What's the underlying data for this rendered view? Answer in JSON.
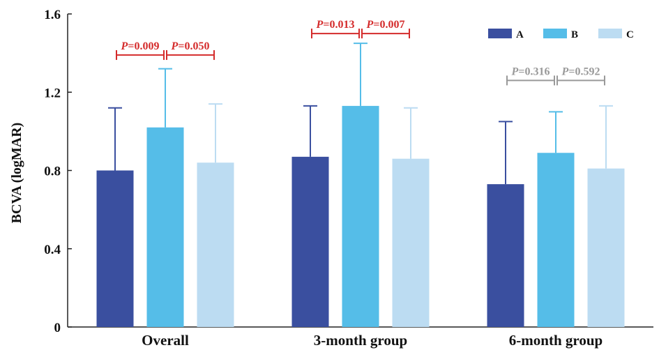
{
  "chart_data": {
    "type": "bar",
    "title": "",
    "xlabel": "",
    "ylabel": "BCVA (logMAR)",
    "ylim": [
      0,
      1.6
    ],
    "yticks": [
      "0",
      "0.4",
      "0.8",
      "1.2",
      "1.6"
    ],
    "categories": [
      "Overall",
      "3-month group",
      "6-month group"
    ],
    "legend_position": "top-right",
    "series": [
      {
        "name": "A",
        "color": "#3a4f9f",
        "values": [
          0.8,
          0.87,
          0.73
        ],
        "errors": [
          0.32,
          0.26,
          0.32
        ]
      },
      {
        "name": "B",
        "color": "#55bde8",
        "values": [
          1.02,
          1.13,
          0.89
        ],
        "errors": [
          0.3,
          0.32,
          0.21
        ]
      },
      {
        "name": "C",
        "color": "#bcdcf2",
        "values": [
          0.84,
          0.86,
          0.81
        ],
        "errors": [
          0.3,
          0.26,
          0.32
        ]
      }
    ],
    "annotations": [
      {
        "category": 0,
        "from": 0,
        "to": 1,
        "p_letter": "P",
        "p_value": "=0.009",
        "level": 1.39,
        "color": "#d42b2b"
      },
      {
        "category": 0,
        "from": 1,
        "to": 2,
        "p_letter": "P",
        "p_value": "=0.050",
        "level": 1.39,
        "color": "#d42b2b"
      },
      {
        "category": 1,
        "from": 0,
        "to": 1,
        "p_letter": "P",
        "p_value": "=0.013",
        "level": 1.5,
        "color": "#d42b2b"
      },
      {
        "category": 1,
        "from": 1,
        "to": 2,
        "p_letter": "P",
        "p_value": "=0.007",
        "level": 1.5,
        "color": "#d42b2b"
      },
      {
        "category": 2,
        "from": 0,
        "to": 1,
        "p_letter": "P",
        "p_value": "=0.316",
        "level": 1.26,
        "color": "#999999"
      },
      {
        "category": 2,
        "from": 1,
        "to": 2,
        "p_letter": "P",
        "p_value": "=0.592",
        "level": 1.26,
        "color": "#999999"
      }
    ]
  }
}
